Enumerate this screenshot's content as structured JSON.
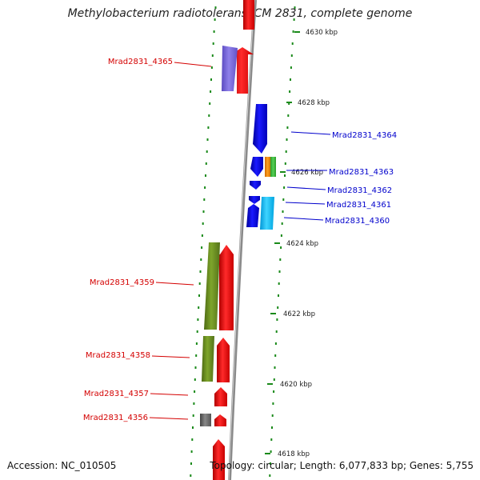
{
  "title": "Methylobacterium radiotolerans JCM 2831, complete genome",
  "footer": {
    "accession": "Accession: NC_010505",
    "topology": "Topology: circular; Length: 6,077,833 bp; Genes: 5,755"
  },
  "scale_ticks": [
    {
      "label": "4630 kbp",
      "kbp": 4630
    },
    {
      "label": "4628 kbp",
      "kbp": 4628
    },
    {
      "label": "4626 kbp",
      "kbp": 4626
    },
    {
      "label": "4624 kbp",
      "kbp": 4624
    },
    {
      "label": "4622 kbp",
      "kbp": 4622
    },
    {
      "label": "4620 kbp",
      "kbp": 4620
    },
    {
      "label": "4618 kbp",
      "kbp": 4618
    }
  ],
  "genes_reverse_strand": [
    {
      "label": "Mrad2831_4365",
      "color": "#7b68d8"
    },
    {
      "label": "Mrad2831_4359",
      "color": "#6b8e23"
    },
    {
      "label": "Mrad2831_4358",
      "color": "#6b8e23"
    },
    {
      "label": "Mrad2831_4357",
      "color": "#ff0000"
    },
    {
      "label": "Mrad2831_4356",
      "color": "#666666"
    }
  ],
  "genes_forward_strand": [
    {
      "label": "Mrad2831_4364",
      "color": "#0000ee"
    },
    {
      "label": "Mrad2831_4363",
      "color": "#ff8c00"
    },
    {
      "label": "Mrad2831_4362",
      "color": "#0000ee"
    },
    {
      "label": "Mrad2831_4361",
      "color": "#0000ee"
    },
    {
      "label": "Mrad2831_4360",
      "color": "#00bfff"
    }
  ],
  "colors": {
    "reverse_label": "#d40000",
    "forward_label": "#0000cc",
    "tick": "#1a8a1a",
    "backbone": "#8a8a8a",
    "cds_red": "#ff0000",
    "cds_blue": "#0000ee",
    "cds_green": "#6b8e23"
  }
}
